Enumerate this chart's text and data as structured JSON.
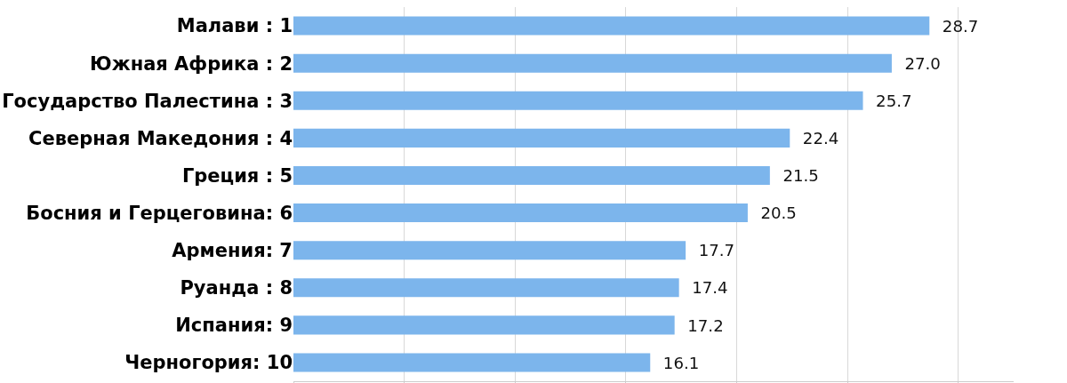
{
  "chart_data": {
    "type": "bar",
    "orientation": "horizontal",
    "categories": [
      "Малави : 1",
      "Южная Африка : 2",
      "Государство Палестина : 3",
      "Северная Македония : 4",
      "Греция : 5",
      "Босния и Герцеговина: 6",
      "Армения: 7",
      "Руанда : 8",
      "Испания: 9",
      "Черногория: 10"
    ],
    "values": [
      28.7,
      27.0,
      25.7,
      22.4,
      21.5,
      20.5,
      17.7,
      17.4,
      17.2,
      16.1
    ],
    "value_labels": [
      "28.7",
      "27.0",
      "25.7",
      "22.4",
      "21.5",
      "20.5",
      "17.7",
      "17.4",
      "17.2",
      "16.1"
    ],
    "color": "#7cb5ec",
    "xlim": [
      0,
      32.5
    ],
    "xticks": [
      {
        "value": 0,
        "label": null
      },
      {
        "value": 5,
        "label": null
      },
      {
        "value": 10,
        "label": null
      },
      {
        "value": 15,
        "label": null
      },
      {
        "value": 20,
        "label": null
      },
      {
        "value": 25,
        "label": null
      },
      {
        "value": 30,
        "label": null
      }
    ],
    "tick_labels": "y",
    "grid": "x"
  }
}
